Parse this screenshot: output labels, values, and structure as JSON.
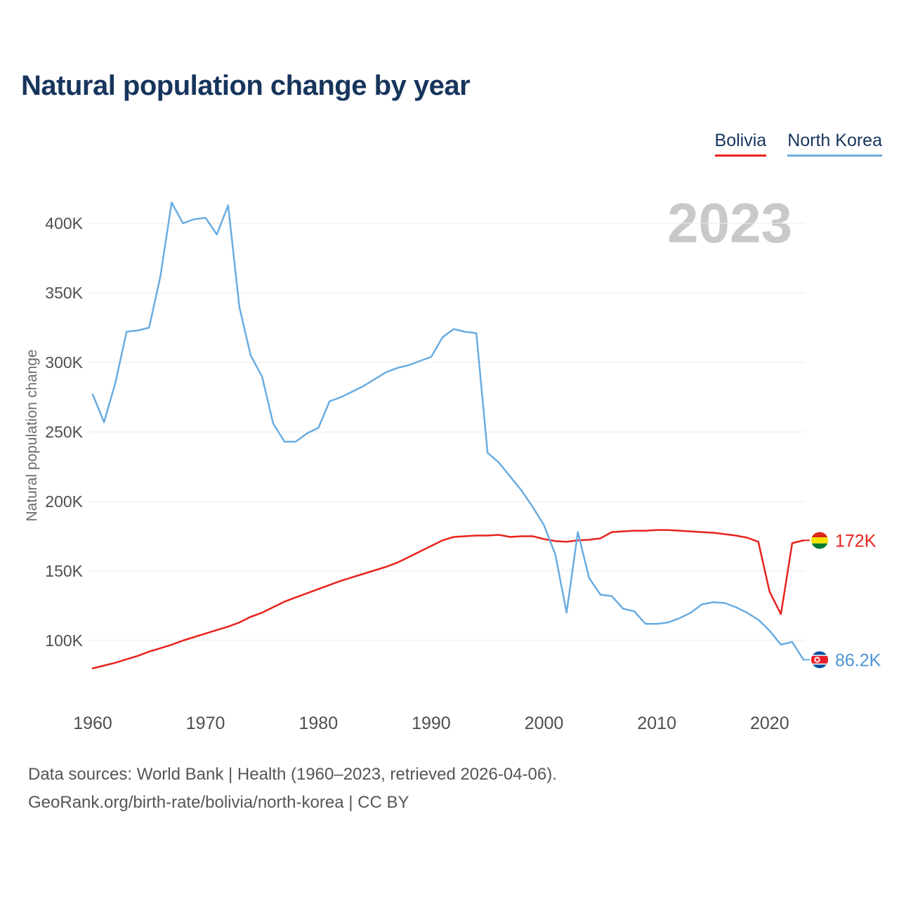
{
  "title": "Natural population change by year",
  "watermark": "2023",
  "y_axis_label": "Natural population change",
  "legend": {
    "items": [
      {
        "label": "Bolivia",
        "color": "#e8231d"
      },
      {
        "label": "North Korea",
        "color": "#6aace0"
      }
    ]
  },
  "end_labels": [
    {
      "text": "172K",
      "series": "Bolivia",
      "flag": "bolivia-flag-icon",
      "color": "#e8231d"
    },
    {
      "text": "86.2K",
      "series": "North Korea",
      "flag": "north-korea-flag-icon",
      "color": "#4d94d6"
    }
  ],
  "footer": {
    "line1": "Data sources: World Bank | Health (1960–2023, retrieved 2026-04-06).",
    "line2": "GeoRank.org/birth-rate/bolivia/north-korea | CC BY"
  },
  "chart_data": {
    "type": "line",
    "title": "Natural population change by year",
    "xlabel": "",
    "ylabel": "Natural population change",
    "x": [
      1960,
      1961,
      1962,
      1963,
      1964,
      1965,
      1966,
      1967,
      1968,
      1969,
      1970,
      1971,
      1972,
      1973,
      1974,
      1975,
      1976,
      1977,
      1978,
      1979,
      1980,
      1981,
      1982,
      1983,
      1984,
      1985,
      1986,
      1987,
      1988,
      1989,
      1990,
      1991,
      1992,
      1993,
      1994,
      1995,
      1996,
      1997,
      1998,
      1999,
      2000,
      2001,
      2002,
      2003,
      2004,
      2005,
      2006,
      2007,
      2008,
      2009,
      2010,
      2011,
      2012,
      2013,
      2014,
      2015,
      2016,
      2017,
      2018,
      2019,
      2020,
      2021,
      2022,
      2023
    ],
    "series": [
      {
        "name": "Bolivia",
        "color": "#e8231d",
        "unit": "people",
        "values": [
          80,
          82,
          84,
          86.5,
          89,
          92,
          94.5,
          97,
          100,
          102.5,
          105,
          107.5,
          110,
          113,
          117,
          120,
          124,
          128,
          131,
          134,
          137,
          140,
          143,
          145.5,
          148,
          150.5,
          153,
          156,
          160,
          164,
          168,
          172,
          174.5,
          175,
          175.5,
          175.5,
          176,
          174.5,
          175,
          175,
          173,
          171.5,
          171,
          172,
          172.5,
          173.5,
          178,
          178.5,
          179,
          179,
          179.5,
          179.5,
          179,
          178.5,
          178,
          177.5,
          176.5,
          175.5,
          174,
          171,
          135,
          119,
          170,
          172
        ]
      },
      {
        "name": "North Korea",
        "color": "#6aace0",
        "unit": "people",
        "values": [
          277,
          257,
          285,
          322,
          323,
          325,
          362,
          415,
          400,
          403,
          404,
          392,
          413,
          340,
          305,
          290,
          256,
          243,
          243,
          249,
          253,
          272,
          275,
          279,
          283,
          288,
          293,
          296,
          298,
          301,
          304,
          318,
          324,
          322,
          321,
          235,
          228,
          218,
          208,
          196,
          183,
          162,
          120,
          178,
          145,
          133,
          132,
          123,
          121,
          112,
          112,
          113,
          116,
          120,
          126,
          127.5,
          127,
          124,
          120,
          115,
          107,
          97,
          99,
          86.2
        ]
      }
    ],
    "values_scale": "thousands",
    "ylim": [
      75,
      425
    ],
    "yticks": [
      100,
      150,
      200,
      250,
      300,
      350,
      400
    ],
    "ytick_labels": [
      "100K",
      "150K",
      "200K",
      "250K",
      "300K",
      "350K",
      "400K"
    ],
    "xticks": [
      1960,
      1970,
      1980,
      1990,
      2000,
      2010,
      2020
    ],
    "grid": "horizontal-only",
    "legend_position": "top-right",
    "last_values": {
      "Bolivia": "172K",
      "North Korea": "86.2K"
    }
  }
}
